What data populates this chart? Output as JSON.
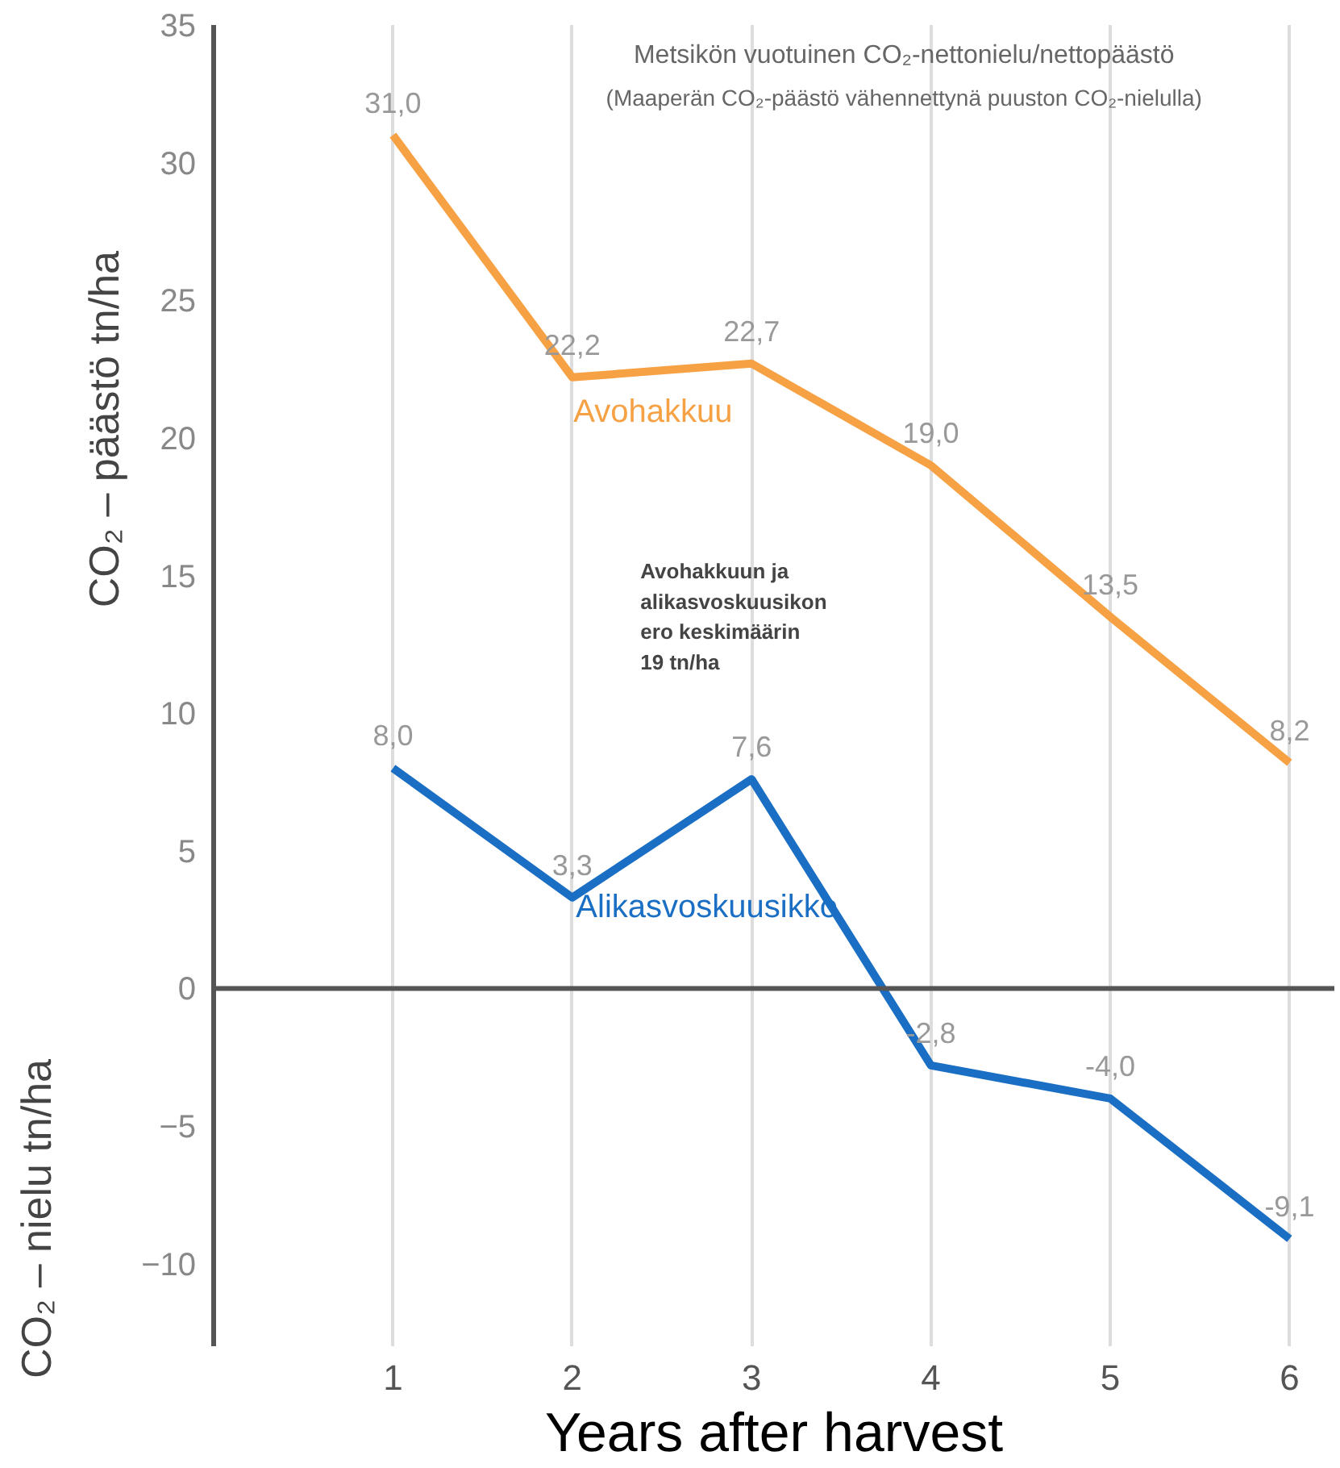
{
  "chart_data": {
    "type": "line",
    "title": "Metsikön vuotuinen CO₂-nettonielu/nettopäästö",
    "subtitle": "(Maaperän CO₂-päästö vähennettynä puuston CO₂-nielulla)",
    "xlabel": "Years after harvest",
    "ylabel": "CO₂ – päästö tn/ha",
    "annotations": [
      "Avohakkuun ja\nalikasvoskuusikon\nero keskimäärin\n19 tn/ha",
      "CO₂ – nielu tn/ha"
    ],
    "x": [
      1,
      2,
      3,
      4,
      5,
      6
    ],
    "series": [
      {
        "name": "Avohakkuu",
        "color": "#f7a145",
        "values": [
          31.0,
          22.2,
          22.7,
          19.0,
          13.5,
          8.2
        ],
        "value_labels": [
          "31,0",
          "22,2",
          "22,7",
          "19,0",
          "13,5",
          "8,2"
        ]
      },
      {
        "name": "Alikasvoskuusikko",
        "color": "#1a6fc4",
        "values": [
          8.0,
          3.3,
          7.6,
          -2.8,
          -4.0,
          -9.1
        ],
        "value_labels": [
          "8,0",
          "3,3",
          "7,6",
          "-2,8",
          "-4,0",
          "-9,1"
        ]
      }
    ],
    "xlim": [
      0,
      6.25
    ],
    "ylim": [
      -13,
      35
    ],
    "xticks": [
      1,
      2,
      3,
      4,
      5,
      6
    ],
    "yticks": [
      -10,
      -5,
      0,
      5,
      10,
      15,
      20,
      25,
      30,
      35
    ],
    "ref_lines": [
      {
        "axis": "y",
        "value": 0,
        "color": "#555555"
      }
    ],
    "grid": "x",
    "marker": "none",
    "line_style": "solid"
  }
}
